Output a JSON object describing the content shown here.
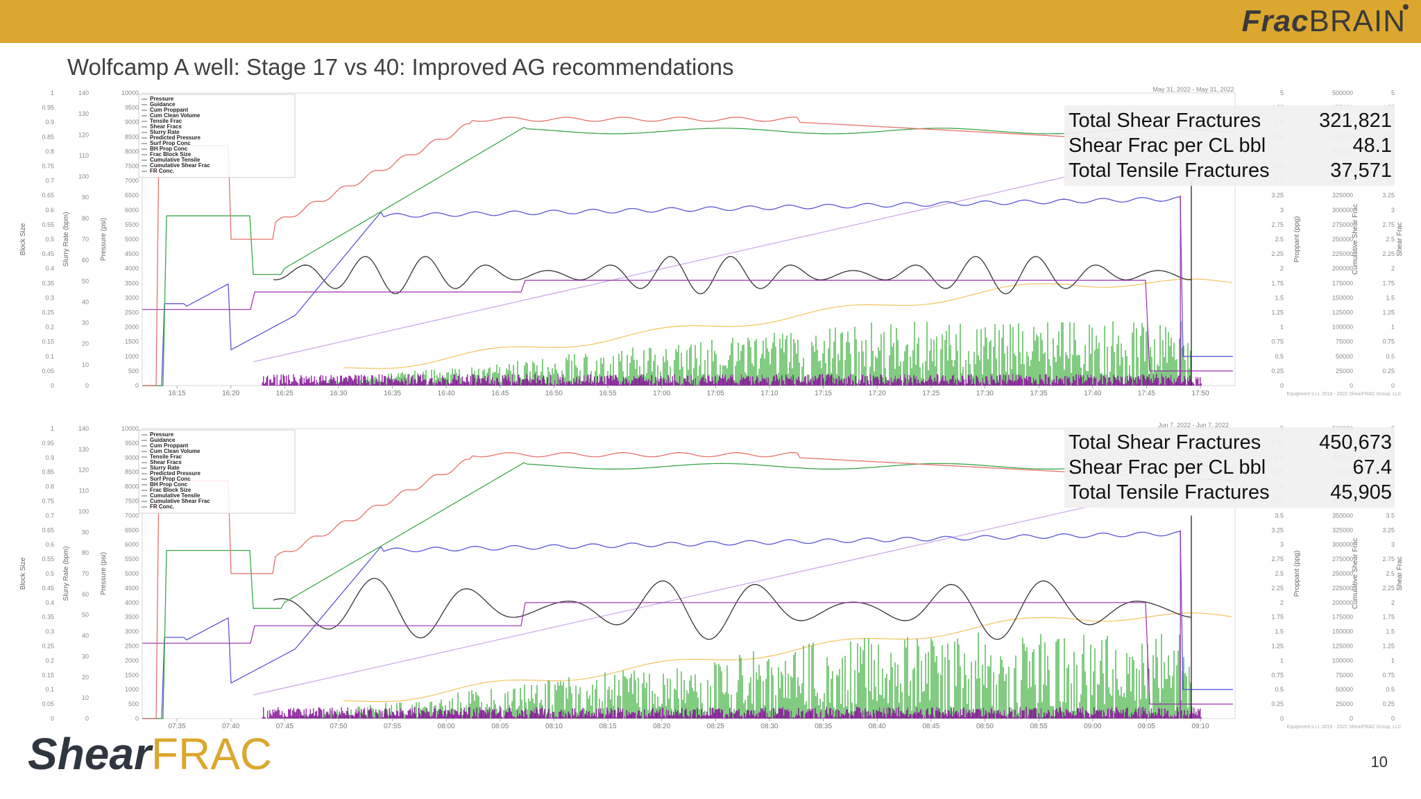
{
  "header": {
    "brand_bold": "Frac",
    "brand_light": "BRAIN",
    "bar_color": "#DBA72E"
  },
  "title": "Wolfcamp A well: Stage 17 vs 40: Improved AG recommendations",
  "footer": {
    "logo_bold": "Shear",
    "logo_light": "FRAC",
    "page_number": "10"
  },
  "chart_data": [
    {
      "type": "line",
      "date_label": "May 31, 2022  -  May 31, 2022",
      "legend": [
        "Pressure",
        "Guidance",
        "Cum Proppant",
        "Cum Clean Volume",
        "Tensile Frac",
        "Shear Fracs",
        "Slurry Rate",
        "Predicted Pressure",
        "Surf Prop Conc",
        "BH Prop Conc",
        "Frac Block Size",
        "Cumulative Tensile",
        "Cumulative Shear Frac",
        "FR Conc."
      ],
      "x_ticks": [
        "16:15",
        "16:20",
        "16:25",
        "16:30",
        "16:35",
        "16:40",
        "16:45",
        "16:50",
        "16:55",
        "17:00",
        "17:05",
        "17:10",
        "17:15",
        "17:20",
        "17:25",
        "17:30",
        "17:35",
        "17:40",
        "17:45",
        "17:50"
      ],
      "axes_left": {
        "block_size": [
          "0",
          "0.05",
          "0.1",
          "0.15",
          "0.2",
          "0.25",
          "0.3",
          "0.35",
          "0.4",
          "0.45",
          "0.5",
          "0.55",
          "0.6",
          "0.65",
          "0.7",
          "0.75",
          "0.8",
          "0.85",
          "0.9",
          "0.95",
          "1"
        ],
        "slurry_rate": [
          "0",
          "10",
          "20",
          "30",
          "40",
          "50",
          "60",
          "70",
          "80",
          "90",
          "100",
          "110",
          "120",
          "130",
          "140"
        ],
        "pressure": [
          "0",
          "500",
          "1000",
          "1500",
          "2000",
          "2500",
          "3000",
          "3500",
          "4000",
          "4500",
          "5000",
          "5500",
          "6000",
          "6500",
          "7000",
          "7500",
          "8000",
          "8500",
          "9000",
          "9500",
          "10000"
        ]
      },
      "axes_right": {
        "prop_conc": [
          "0",
          "0.25",
          "0.5",
          "0.75",
          "1",
          "1.25",
          "1.5",
          "1.75",
          "2",
          "2.25",
          "2.5",
          "2.75",
          "3",
          "3.25",
          "3.5",
          "3.75",
          "4",
          "4.25",
          "4.5",
          "4.75",
          "5"
        ],
        "cum_shear": [
          "0",
          "25000",
          "50000",
          "75000",
          "100000",
          "125000",
          "150000",
          "175000",
          "200000",
          "225000",
          "250000",
          "275000",
          "300000",
          "325000",
          "350000",
          "375000",
          "400000",
          "425000",
          "450000",
          "475000",
          "500000"
        ],
        "shear_frac": [
          "0",
          "0.25",
          "0.5",
          "0.75",
          "1",
          "1.25",
          "1.5",
          "1.75",
          "2",
          "2.25",
          "2.5",
          "2.75",
          "3",
          "3.25",
          "3.5",
          "3.75",
          "4",
          "4.25",
          "4.5",
          "4.75",
          "5"
        ]
      },
      "axis_titles": {
        "block_size": "Block Size",
        "slurry_rate": "Slurry Rate (bpm)",
        "pressure": "Pressure (psi)",
        "prop_conc": "Proppant (ppg)",
        "cum_shear": "Cumulative Shear Frac",
        "shear_frac": "Shear Frac"
      },
      "footnote": "Equipment s.r.l. 2019 - 2022 ShearFRAC Group, LLC",
      "stats": [
        {
          "label": "Total Shear Fractures",
          "value": "321,821"
        },
        {
          "label": "Shear Frac per CL bbl",
          "value": "48.1"
        },
        {
          "label": "Total Tensile Fractures",
          "value": "37,571"
        }
      ],
      "series_colors": {
        "pressure": "#e8706a",
        "cum_clean": "#3aa84a",
        "slurry": "#5b55d6",
        "frac_block": "#333333",
        "cumulative": "#c9a4e6",
        "prop": "#f2c45a",
        "guidance": "#9b2bb0",
        "shear": "#2eaa2e",
        "tensile": "#8a1a9b"
      }
    },
    {
      "type": "line",
      "date_label": "Jun 7, 2022  -  Jun 7, 2022",
      "legend": [
        "Pressure",
        "Guidance",
        "Cum Proppant",
        "Cum Clean Volume",
        "Tensile Frac",
        "Shear Fracs",
        "Slurry Rate",
        "Predicted Pressure",
        "Surf Prop Conc",
        "BH Prop Conc",
        "Frac Block Size",
        "Cumulative Tensile",
        "Cumulative Shear Frac",
        "FR Conc."
      ],
      "x_ticks": [
        "07:35",
        "07:40",
        "07:45",
        "07:50",
        "07:55",
        "08:00",
        "08:05",
        "08:10",
        "08:15",
        "08:20",
        "08:25",
        "08:30",
        "08:35",
        "08:40",
        "08:45",
        "08:50",
        "08:55",
        "09:00",
        "09:05",
        "09:10"
      ],
      "axes_left": {
        "block_size": [
          "0",
          "0.05",
          "0.1",
          "0.15",
          "0.2",
          "0.25",
          "0.3",
          "0.35",
          "0.4",
          "0.45",
          "0.5",
          "0.55",
          "0.6",
          "0.65",
          "0.7",
          "0.75",
          "0.8",
          "0.85",
          "0.9",
          "0.95",
          "1"
        ],
        "slurry_rate": [
          "0",
          "10",
          "20",
          "30",
          "40",
          "50",
          "60",
          "70",
          "80",
          "90",
          "100",
          "110",
          "120",
          "130",
          "140"
        ],
        "pressure": [
          "0",
          "500",
          "1000",
          "1500",
          "2000",
          "2500",
          "3000",
          "3500",
          "4000",
          "4500",
          "5000",
          "5500",
          "6000",
          "6500",
          "7000",
          "7500",
          "8000",
          "8500",
          "9000",
          "9500",
          "10000"
        ]
      },
      "axes_right": {
        "prop_conc": [
          "0",
          "0.25",
          "0.5",
          "0.75",
          "1",
          "1.25",
          "1.5",
          "1.75",
          "2",
          "2.25",
          "2.5",
          "2.75",
          "3",
          "3.25",
          "3.5",
          "3.75",
          "4",
          "4.25",
          "4.5",
          "4.75",
          "5"
        ],
        "cum_shear": [
          "0",
          "25000",
          "50000",
          "75000",
          "100000",
          "125000",
          "150000",
          "175000",
          "200000",
          "225000",
          "250000",
          "275000",
          "300000",
          "325000",
          "350000",
          "375000",
          "400000",
          "425000",
          "450000",
          "475000",
          "500000"
        ],
        "shear_frac": [
          "0",
          "0.25",
          "0.5",
          "0.75",
          "1",
          "1.25",
          "1.5",
          "1.75",
          "2",
          "2.25",
          "2.5",
          "2.75",
          "3",
          "3.25",
          "3.5",
          "3.75",
          "4",
          "4.25",
          "4.5",
          "4.75",
          "5"
        ]
      },
      "axis_titles": {
        "block_size": "Block Size",
        "slurry_rate": "Slurry Rate (bpm)",
        "pressure": "Pressure (psi)",
        "prop_conc": "Proppant (ppg)",
        "cum_shear": "Cumulative Shear Frac",
        "shear_frac": "Shear Frac"
      },
      "footnote": "Equipment s.r.l. 2019 - 2022 ShearFRAC Group, LLC",
      "stats": [
        {
          "label": "Total Shear Fractures",
          "value": "450,673"
        },
        {
          "label": "Shear Frac per CL bbl",
          "value": "67.4"
        },
        {
          "label": "Total Tensile Fractures",
          "value": "45,905"
        }
      ],
      "series_colors": {
        "pressure": "#e8706a",
        "cum_clean": "#3aa84a",
        "slurry": "#5b55d6",
        "frac_block": "#333333",
        "cumulative": "#c9a4e6",
        "prop": "#f2c45a",
        "guidance": "#9b2bb0",
        "shear": "#2eaa2e",
        "tensile": "#8a1a9b"
      }
    }
  ]
}
